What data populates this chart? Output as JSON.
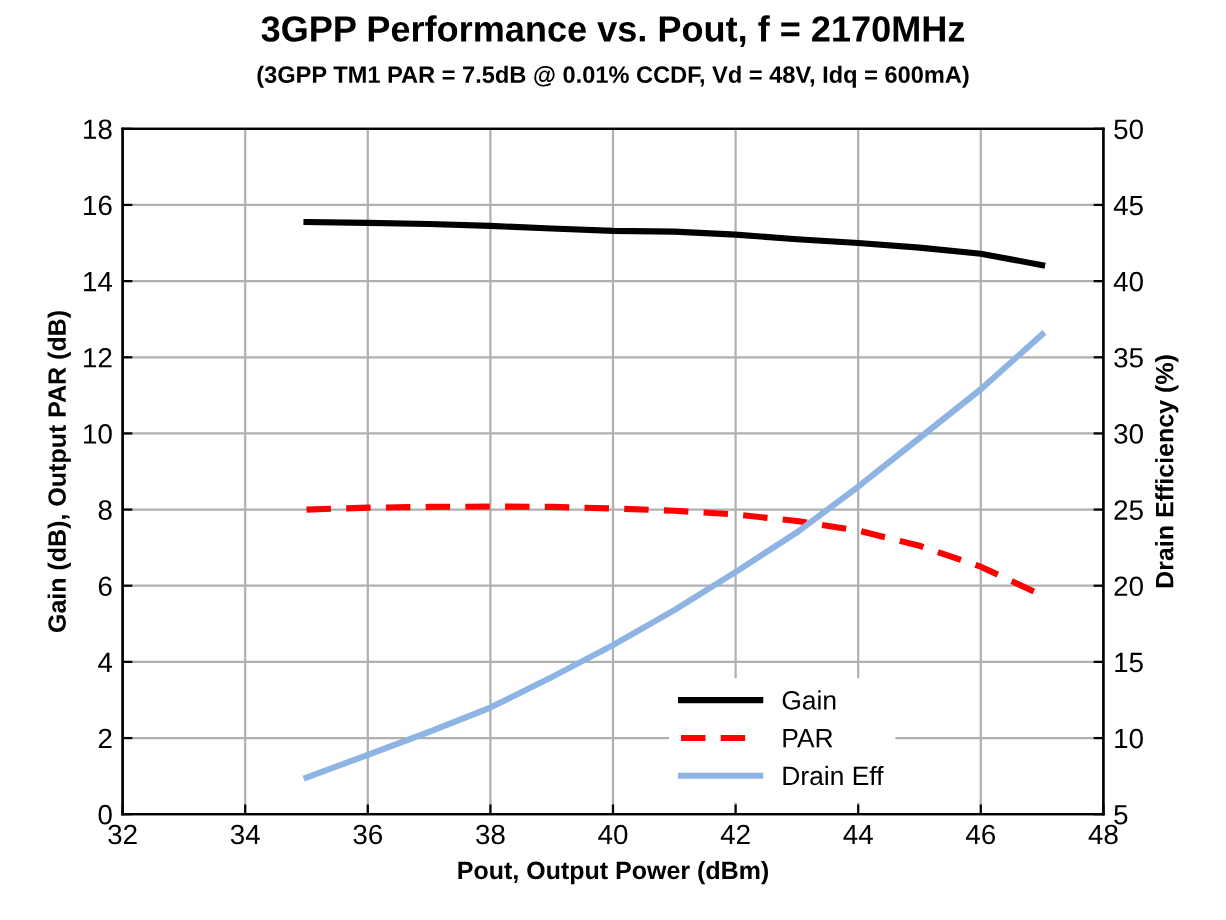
{
  "chart_data": {
    "type": "line",
    "title": "3GPP Performance vs. Pout, f = 2170MHz",
    "subtitle": "(3GPP TM1 PAR = 7.5dB @ 0.01% CCDF, Vd = 48V, Idq = 600mA)",
    "xlabel": "Pout, Output Power (dBm)",
    "ylabel": "Gain (dB), Output PAR (dB)",
    "y2label": "Drain Efficiency (%)",
    "x": [
      35,
      36,
      37,
      38,
      39,
      40,
      41,
      42,
      43,
      44,
      45,
      46,
      47
    ],
    "series": [
      {
        "name": "Gain",
        "color": "#000000",
        "line_style": "solid",
        "values": [
          15.55,
          15.53,
          15.5,
          15.45,
          15.38,
          15.32,
          15.3,
          15.22,
          15.1,
          15.0,
          14.88,
          14.72,
          14.42
        ]
      },
      {
        "name": "PAR",
        "color": "#ff0000",
        "line_style": "dashed",
        "values": [
          8.0,
          8.05,
          8.07,
          8.08,
          8.07,
          8.03,
          7.97,
          7.87,
          7.7,
          7.45,
          7.05,
          6.5,
          5.75
        ]
      },
      {
        "name": "Drain Eff",
        "color": "#8db4e2",
        "line_style": "solid",
        "axis": "y2",
        "values": [
          7.4,
          8.9,
          10.4,
          12.0,
          14.0,
          16.1,
          18.4,
          20.9,
          23.5,
          26.5,
          29.7,
          32.9,
          36.5
        ]
      }
    ],
    "xlim": [
      32,
      48
    ],
    "xticks": [
      32,
      34,
      36,
      38,
      40,
      42,
      44,
      46,
      48
    ],
    "ylim": [
      0,
      18
    ],
    "yticks": [
      0,
      2,
      4,
      6,
      8,
      10,
      12,
      14,
      16,
      18
    ],
    "y2lim": [
      5,
      50
    ],
    "y2ticks": [
      5,
      10,
      15,
      20,
      25,
      30,
      35,
      40,
      45,
      50
    ],
    "grid": true,
    "legend": "bottom right",
    "marker": "none"
  }
}
